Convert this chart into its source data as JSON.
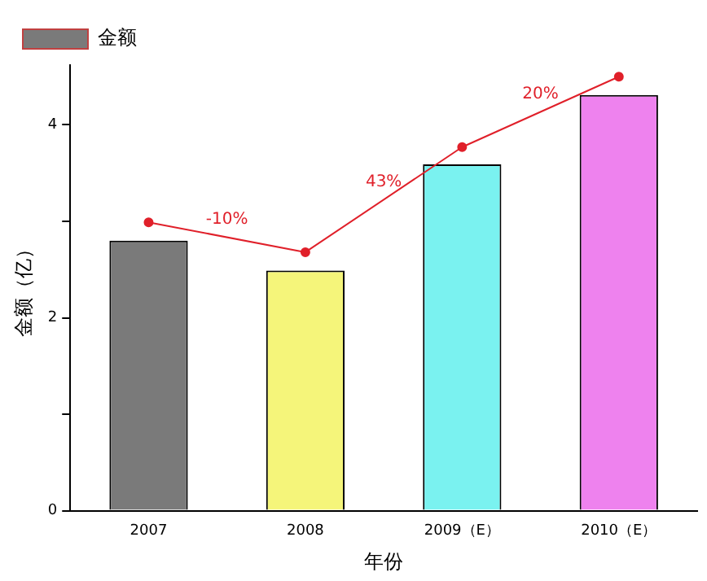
{
  "chart_data": {
    "type": "bar",
    "xlabel": "年份",
    "ylabel": "金额（亿）",
    "categories": [
      "2007",
      "2008",
      "2009（E）",
      "2010（E）"
    ],
    "series": [
      {
        "name": "金额",
        "colors": [
          "#7a7a7a",
          "#f5f57a",
          "#7af2f0",
          "#ee82ee"
        ],
        "values": [
          2.8,
          2.49,
          3.59,
          4.31
        ]
      },
      {
        "type": "line",
        "color": "#e0202a",
        "values": [
          2.99,
          2.68,
          3.77,
          4.5
        ]
      }
    ],
    "annotations": [
      "-10%",
      "43%",
      "20%"
    ],
    "ylim": [
      0,
      4.62
    ],
    "yticks": [
      0,
      {
        "value": 1,
        "label": null
      },
      2,
      {
        "value": 3,
        "label": null
      },
      4
    ],
    "grid": false,
    "legend": "top left",
    "marker": "circle"
  }
}
